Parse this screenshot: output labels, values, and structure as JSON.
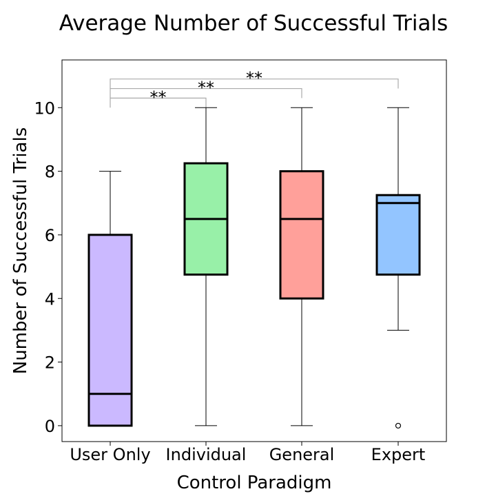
{
  "chart_data": {
    "type": "boxplot",
    "title": "Average Number of Successful Trials",
    "xlabel": "Control Paradigm",
    "ylabel": "Number of Successful Trials",
    "ylim": [
      -0.5,
      11.5
    ],
    "yticks": [
      0,
      2,
      4,
      6,
      8,
      10
    ],
    "categories": [
      "User Only",
      "Individual",
      "General",
      "Expert"
    ],
    "colors": [
      "#cbb9ff",
      "#98f0a8",
      "#ffa09a",
      "#93c5ff"
    ],
    "boxes": [
      {
        "name": "User Only",
        "whisker_low": 0,
        "q1": 0,
        "median": 1,
        "q3": 6,
        "whisker_high": 8,
        "outliers": []
      },
      {
        "name": "Individual",
        "whisker_low": 0,
        "q1": 4.75,
        "median": 6.5,
        "q3": 8.25,
        "whisker_high": 10,
        "outliers": []
      },
      {
        "name": "General",
        "whisker_low": 0,
        "q1": 4,
        "median": 6.5,
        "q3": 8,
        "whisker_high": 10,
        "outliers": []
      },
      {
        "name": "Expert",
        "whisker_low": 3,
        "q1": 4.75,
        "median": 7,
        "q3": 7.25,
        "whisker_high": 10,
        "outliers": [
          0
        ]
      }
    ],
    "significance": [
      {
        "from": "User Only",
        "to": "Individual",
        "y": 10.3,
        "label": "**"
      },
      {
        "from": "User Only",
        "to": "General",
        "y": 10.6,
        "label": "**"
      },
      {
        "from": "User Only",
        "to": "Expert",
        "y": 10.9,
        "label": "**"
      }
    ]
  }
}
